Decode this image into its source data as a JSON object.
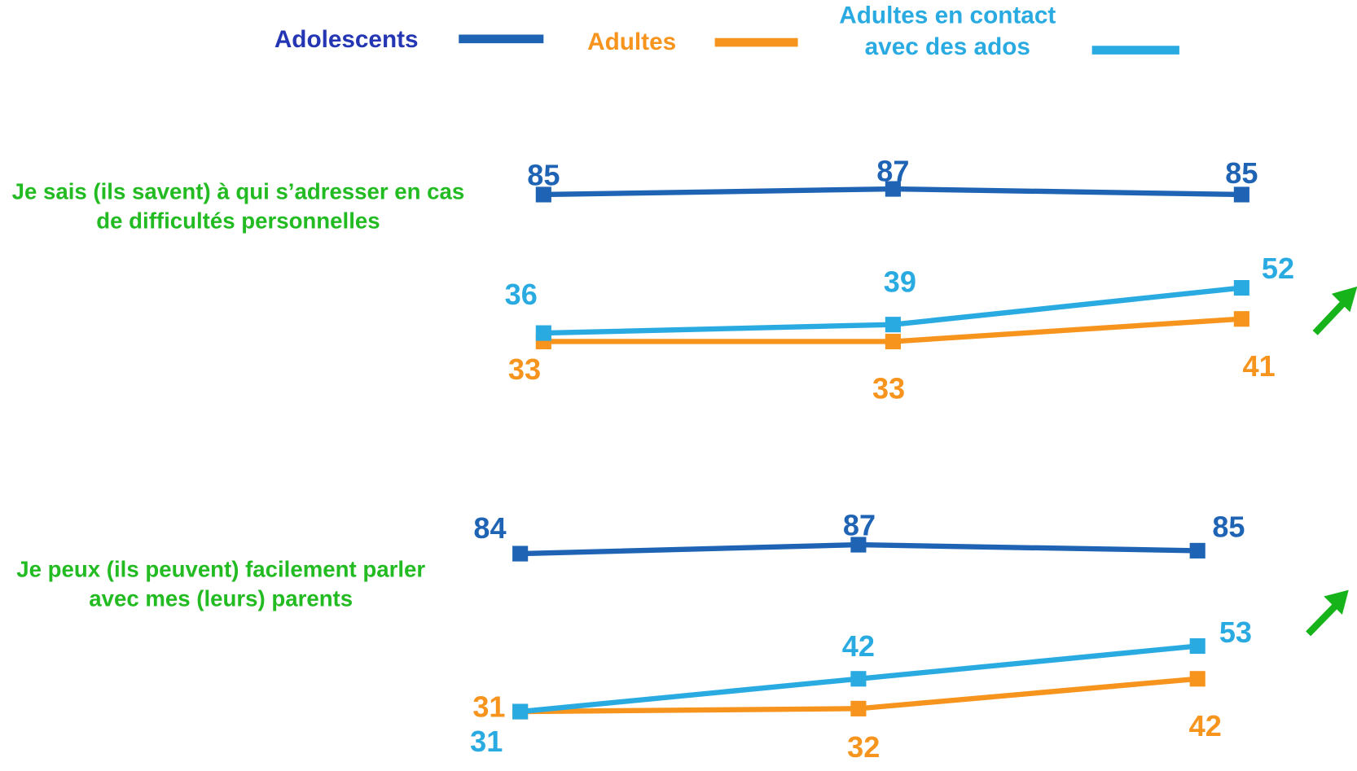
{
  "chart_data": [
    {
      "type": "line",
      "title": "Je sais (ils savent) à qui s’adresser en cas de difficultés personnelles",
      "series": [
        {
          "name": "Adolescents",
          "color": "#1f64b4",
          "values": [
            85,
            87,
            85
          ]
        },
        {
          "name": "Adultes",
          "color": "#f7941d",
          "values": [
            33,
            33,
            41
          ]
        },
        {
          "name": "Adultes en contact avec des ados",
          "color": "#29abe2",
          "values": [
            36,
            39,
            52
          ]
        }
      ]
    },
    {
      "type": "line",
      "title": "Je peux (ils peuvent) facilement parler avec mes (leurs) parents",
      "series": [
        {
          "color": "#1f64b4",
          "values": [
            84,
            87,
            85
          ]
        },
        {
          "color": "#f7941d",
          "values": [
            31,
            32,
            42
          ]
        },
        {
          "color": "#29abe2",
          "values": [
            31,
            42,
            53
          ]
        }
      ]
    }
  ]
}
